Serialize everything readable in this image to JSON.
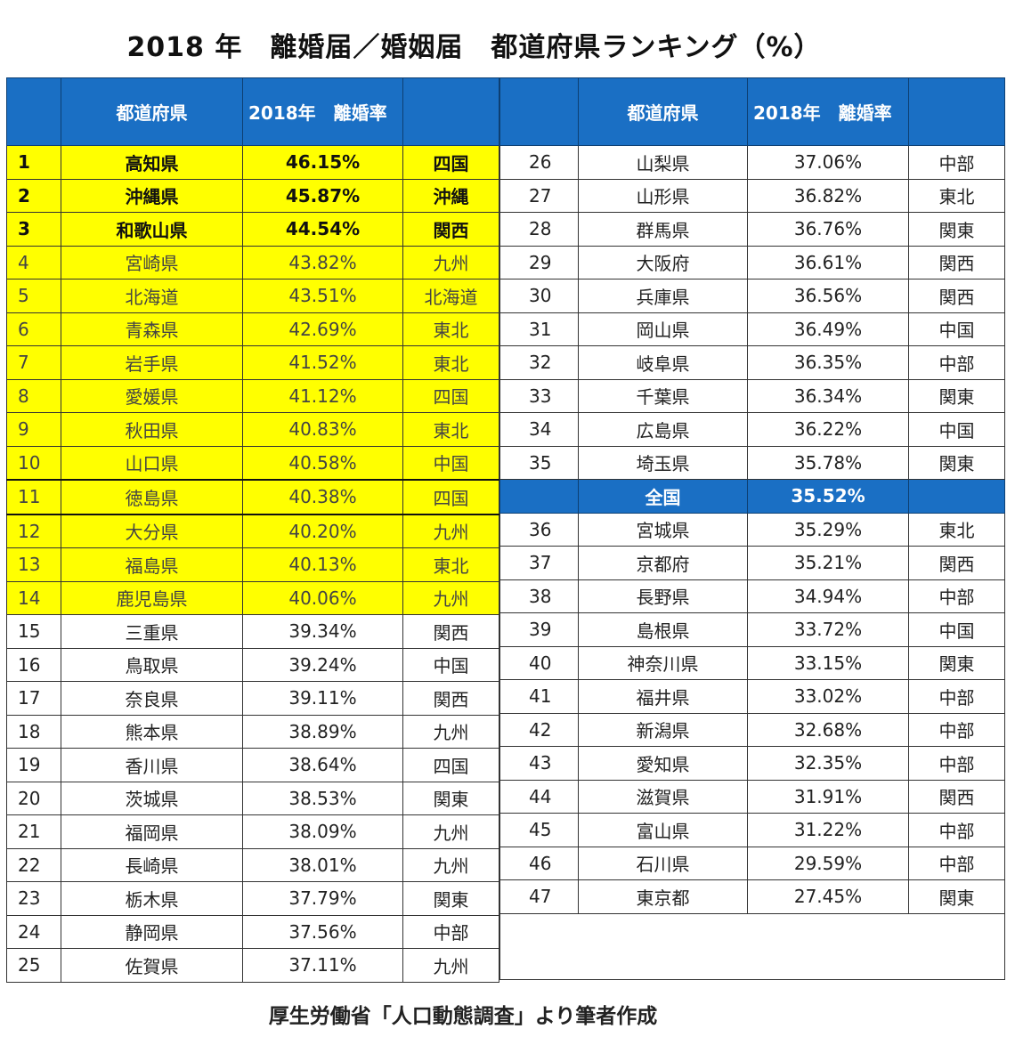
{
  "title": "2018 年　離婚届／婚姻届　都道府県ランキング（%）",
  "source": "厚生労働省「人口動態調査」より筆者作成",
  "headers": {
    "left": [
      "",
      "都道府県",
      "2018年　離婚率",
      ""
    ],
    "right": [
      "",
      "都道府県",
      "2018年　離婚率",
      ""
    ]
  },
  "national": {
    "label": "全国",
    "rate": "35.52%"
  },
  "chart_data": {
    "type": "table",
    "title": "2018 年　離婚届／婚姻届　都道府県ランキング（%）",
    "columns": [
      "",
      "都道府県",
      "2018年　離婚率",
      ""
    ],
    "left_rows": [
      {
        "rank": "1",
        "pref": "高知県",
        "rate": "46.15%",
        "region": "四国"
      },
      {
        "rank": "2",
        "pref": "沖縄県",
        "rate": "45.87%",
        "region": "沖縄"
      },
      {
        "rank": "3",
        "pref": "和歌山県",
        "rate": "44.54%",
        "region": "関西"
      },
      {
        "rank": "4",
        "pref": "宮崎県",
        "rate": "43.82%",
        "region": "九州"
      },
      {
        "rank": "5",
        "pref": "北海道",
        "rate": "43.51%",
        "region": "北海道"
      },
      {
        "rank": "6",
        "pref": "青森県",
        "rate": "42.69%",
        "region": "東北"
      },
      {
        "rank": "7",
        "pref": "岩手県",
        "rate": "41.52%",
        "region": "東北"
      },
      {
        "rank": "8",
        "pref": "愛媛県",
        "rate": "41.12%",
        "region": "四国"
      },
      {
        "rank": "9",
        "pref": "秋田県",
        "rate": "40.83%",
        "region": "東北"
      },
      {
        "rank": "10",
        "pref": "山口県",
        "rate": "40.58%",
        "region": "中国"
      },
      {
        "rank": "11",
        "pref": "徳島県",
        "rate": "40.38%",
        "region": "四国"
      },
      {
        "rank": "12",
        "pref": "大分県",
        "rate": "40.20%",
        "region": "九州"
      },
      {
        "rank": "13",
        "pref": "福島県",
        "rate": "40.13%",
        "region": "東北"
      },
      {
        "rank": "14",
        "pref": "鹿児島県",
        "rate": "40.06%",
        "region": "九州"
      },
      {
        "rank": "15",
        "pref": "三重県",
        "rate": "39.34%",
        "region": "関西"
      },
      {
        "rank": "16",
        "pref": "鳥取県",
        "rate": "39.24%",
        "region": "中国"
      },
      {
        "rank": "17",
        "pref": "奈良県",
        "rate": "39.11%",
        "region": "関西"
      },
      {
        "rank": "18",
        "pref": "熊本県",
        "rate": "38.89%",
        "region": "九州"
      },
      {
        "rank": "19",
        "pref": "香川県",
        "rate": "38.64%",
        "region": "四国"
      },
      {
        "rank": "20",
        "pref": "茨城県",
        "rate": "38.53%",
        "region": "関東"
      },
      {
        "rank": "21",
        "pref": "福岡県",
        "rate": "38.09%",
        "region": "九州"
      },
      {
        "rank": "22",
        "pref": "長崎県",
        "rate": "38.01%",
        "region": "九州"
      },
      {
        "rank": "23",
        "pref": "栃木県",
        "rate": "37.79%",
        "region": "関東"
      },
      {
        "rank": "24",
        "pref": "静岡県",
        "rate": "37.56%",
        "region": "中部"
      },
      {
        "rank": "25",
        "pref": "佐賀県",
        "rate": "37.11%",
        "region": "九州"
      }
    ],
    "right_rows": [
      {
        "rank": "26",
        "pref": "山梨県",
        "rate": "37.06%",
        "region": "中部"
      },
      {
        "rank": "27",
        "pref": "山形県",
        "rate": "36.82%",
        "region": "東北"
      },
      {
        "rank": "28",
        "pref": "群馬県",
        "rate": "36.76%",
        "region": "関東"
      },
      {
        "rank": "29",
        "pref": "大阪府",
        "rate": "36.61%",
        "region": "関西"
      },
      {
        "rank": "30",
        "pref": "兵庫県",
        "rate": "36.56%",
        "region": "関西"
      },
      {
        "rank": "31",
        "pref": "岡山県",
        "rate": "36.49%",
        "region": "中国"
      },
      {
        "rank": "32",
        "pref": "岐阜県",
        "rate": "36.35%",
        "region": "中部"
      },
      {
        "rank": "33",
        "pref": "千葉県",
        "rate": "36.34%",
        "region": "関東"
      },
      {
        "rank": "34",
        "pref": "広島県",
        "rate": "36.22%",
        "region": "中国"
      },
      {
        "rank": "35",
        "pref": "埼玉県",
        "rate": "35.78%",
        "region": "関東"
      },
      {
        "rank": "36",
        "pref": "宮城県",
        "rate": "35.29%",
        "region": "東北"
      },
      {
        "rank": "37",
        "pref": "京都府",
        "rate": "35.21%",
        "region": "関西"
      },
      {
        "rank": "38",
        "pref": "長野県",
        "rate": "34.94%",
        "region": "中部"
      },
      {
        "rank": "39",
        "pref": "島根県",
        "rate": "33.72%",
        "region": "中国"
      },
      {
        "rank": "40",
        "pref": "神奈川県",
        "rate": "33.15%",
        "region": "関東"
      },
      {
        "rank": "41",
        "pref": "福井県",
        "rate": "33.02%",
        "region": "中部"
      },
      {
        "rank": "42",
        "pref": "新潟県",
        "rate": "32.68%",
        "region": "中部"
      },
      {
        "rank": "43",
        "pref": "愛知県",
        "rate": "32.35%",
        "region": "中部"
      },
      {
        "rank": "44",
        "pref": "滋賀県",
        "rate": "31.91%",
        "region": "関西"
      },
      {
        "rank": "45",
        "pref": "富山県",
        "rate": "31.22%",
        "region": "中部"
      },
      {
        "rank": "46",
        "pref": "石川県",
        "rate": "29.59%",
        "region": "中部"
      },
      {
        "rank": "47",
        "pref": "東京都",
        "rate": "27.45%",
        "region": "関東"
      }
    ],
    "highlight_top": 14,
    "highlight_color": "#ffff00",
    "header_color": "#1a6fc4"
  }
}
